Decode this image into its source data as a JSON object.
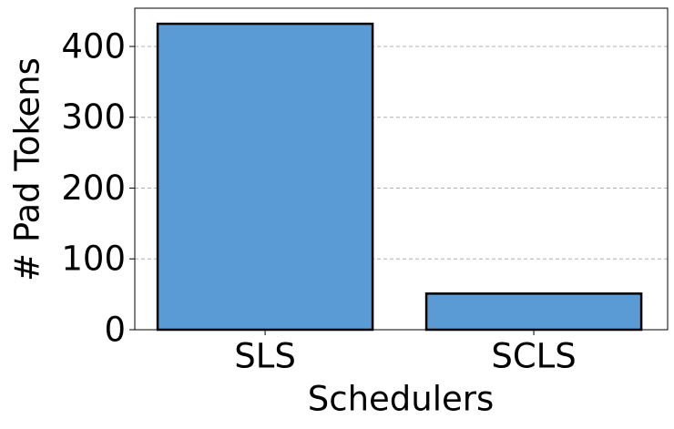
{
  "chart_data": {
    "type": "bar",
    "x_label": "Schedulers",
    "y_label": "# Pad Tokens",
    "categories": [
      "SLS",
      "SCLS"
    ],
    "values": [
      432,
      51
    ],
    "color": "#5b9bd5",
    "ylim": [
      0,
      454
    ],
    "yticks": [
      0,
      100,
      200,
      300,
      400
    ],
    "grid": true
  }
}
